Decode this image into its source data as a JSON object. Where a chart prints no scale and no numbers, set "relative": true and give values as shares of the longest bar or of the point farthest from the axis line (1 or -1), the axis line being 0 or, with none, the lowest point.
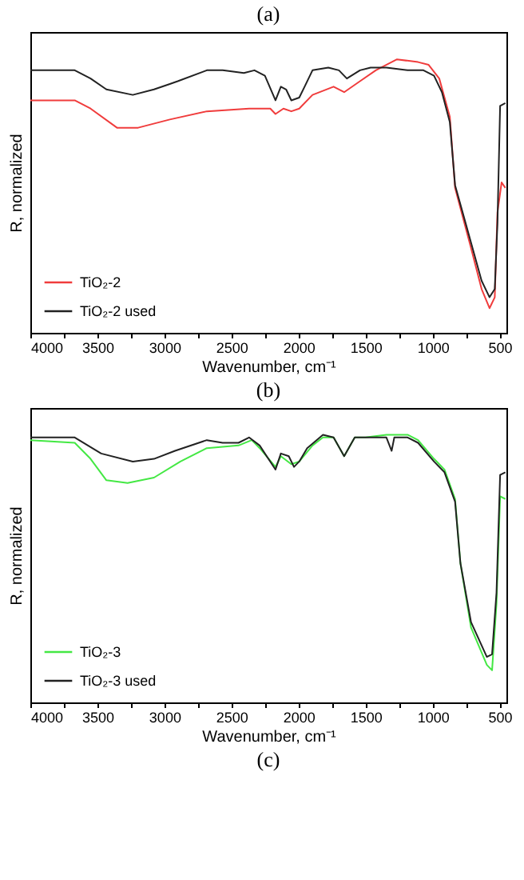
{
  "chart_data": [
    {
      "type": "line",
      "title": "(a)",
      "xlabel": "Wavenumber, cm⁻¹",
      "ylabel": "R, normalized",
      "relative": true,
      "legend": "bottom left",
      "grid": false,
      "xlim": [
        4000,
        450
      ],
      "xticks": [
        4000,
        {
          "value": 3750,
          "label": null
        },
        3500,
        {
          "value": 3250,
          "label": null
        },
        3000,
        {
          "value": 2750,
          "label": null
        },
        2500,
        {
          "value": 2250,
          "label": null
        },
        2000,
        {
          "value": 1750,
          "label": null
        },
        1500,
        {
          "value": 1250,
          "label": null
        },
        1000,
        {
          "value": 750,
          "label": null
        },
        500
      ],
      "series": [
        {
          "name": "TiO₂-2",
          "color": "#f03c3c",
          "x": [
            4000,
            3669,
            3551,
            3354,
            3196,
            2960,
            2684,
            2369,
            2211,
            2172,
            2113,
            2054,
            1995,
            1896,
            1739,
            1660,
            1542,
            1424,
            1266,
            1109,
            1030,
            951,
            872,
            833,
            714,
            635,
            576,
            537,
            517,
            486,
            458
          ],
          "values": [
            0.85,
            0.85,
            0.82,
            0.75,
            0.75,
            0.78,
            0.81,
            0.82,
            0.82,
            0.8,
            0.82,
            0.81,
            0.82,
            0.87,
            0.9,
            0.88,
            0.92,
            0.96,
            1.0,
            0.99,
            0.98,
            0.93,
            0.79,
            0.53,
            0.31,
            0.16,
            0.09,
            0.13,
            0.44,
            0.55,
            0.53
          ]
        },
        {
          "name": "TiO₂-2 used",
          "color": "#222222",
          "x": [
            4000,
            3669,
            3551,
            3433,
            3236,
            3078,
            2960,
            2901,
            2684,
            2566,
            2408,
            2329,
            2251,
            2172,
            2132,
            2093,
            2054,
            1995,
            1955,
            1896,
            1778,
            1699,
            1640,
            1542,
            1463,
            1345,
            1187,
            1069,
            990,
            931,
            872,
            833,
            714,
            635,
            576,
            537,
            517,
            497,
            458
          ],
          "values": [
            0.96,
            0.96,
            0.93,
            0.89,
            0.87,
            0.89,
            0.91,
            0.92,
            0.96,
            0.96,
            0.95,
            0.96,
            0.94,
            0.85,
            0.9,
            0.89,
            0.85,
            0.86,
            0.9,
            0.96,
            0.97,
            0.96,
            0.93,
            0.96,
            0.97,
            0.97,
            0.96,
            0.96,
            0.94,
            0.88,
            0.77,
            0.54,
            0.33,
            0.19,
            0.13,
            0.16,
            0.4,
            0.83,
            0.84
          ]
        }
      ]
    },
    {
      "type": "line",
      "title": "(b)",
      "xlabel": "Wavenumber, cm⁻¹",
      "ylabel": "R, normalized",
      "relative": true,
      "legend": "bottom left",
      "grid": false,
      "annotations": [
        "(c)"
      ],
      "xlim": [
        4000,
        450
      ],
      "xticks": [
        4000,
        {
          "value": 3750,
          "label": null
        },
        3500,
        {
          "value": 3250,
          "label": null
        },
        3000,
        {
          "value": 2750,
          "label": null
        },
        2500,
        {
          "value": 2250,
          "label": null
        },
        2000,
        {
          "value": 1750,
          "label": null
        },
        1500,
        {
          "value": 1250,
          "label": null
        },
        1000,
        {
          "value": 750,
          "label": null
        },
        500
      ],
      "series": [
        {
          "name": "TiO₂-3",
          "color": "#44e844",
          "x": [
            4000,
            3669,
            3551,
            3433,
            3275,
            3078,
            2881,
            2684,
            2448,
            2349,
            2290,
            2172,
            2132,
            2054,
            1995,
            1896,
            1818,
            1739,
            1660,
            1581,
            1502,
            1345,
            1187,
            1109,
            990,
            912,
            833,
            793,
            714,
            596,
            557,
            524,
            497,
            458
          ],
          "values": [
            0.98,
            0.97,
            0.91,
            0.83,
            0.82,
            0.84,
            0.9,
            0.95,
            0.96,
            0.98,
            0.95,
            0.88,
            0.92,
            0.89,
            0.9,
            0.96,
            0.99,
            0.99,
            0.92,
            0.99,
            0.99,
            1.0,
            1.0,
            0.98,
            0.91,
            0.87,
            0.76,
            0.52,
            0.28,
            0.14,
            0.12,
            0.37,
            0.77,
            0.76
          ]
        },
        {
          "name": "TiO₂-3 used",
          "color": "#222222",
          "x": [
            4000,
            3669,
            3472,
            3236,
            3078,
            2921,
            2684,
            2566,
            2448,
            2369,
            2290,
            2172,
            2132,
            2073,
            2034,
            1995,
            1936,
            1818,
            1739,
            1660,
            1581,
            1502,
            1424,
            1345,
            1306,
            1286,
            1187,
            1109,
            990,
            912,
            833,
            793,
            714,
            596,
            557,
            524,
            497,
            458
          ],
          "values": [
            0.99,
            0.99,
            0.93,
            0.9,
            0.91,
            0.94,
            0.98,
            0.97,
            0.97,
            0.99,
            0.96,
            0.87,
            0.93,
            0.92,
            0.88,
            0.9,
            0.95,
            1.0,
            0.99,
            0.92,
            0.99,
            0.99,
            0.99,
            0.99,
            0.94,
            0.99,
            0.99,
            0.97,
            0.9,
            0.86,
            0.75,
            0.52,
            0.3,
            0.17,
            0.18,
            0.41,
            0.85,
            0.86
          ]
        }
      ]
    }
  ]
}
